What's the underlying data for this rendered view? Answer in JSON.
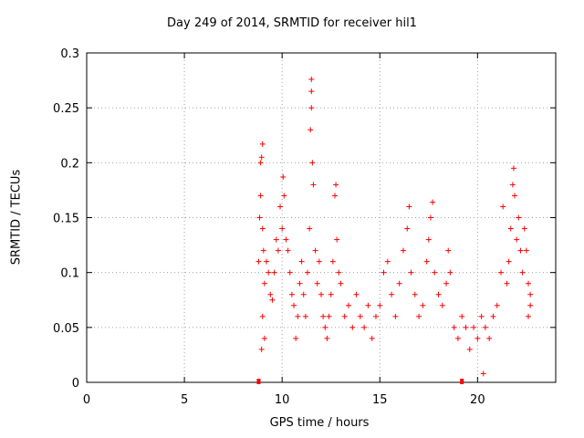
{
  "chart_data": {
    "type": "scatter",
    "title": "Day 249 of 2014, SRMTID for receiver hil1",
    "xlabel": "GPS time / hours",
    "ylabel": "SRMTID / TECUs",
    "xlim": [
      0,
      24
    ],
    "ylim": [
      0,
      0.3
    ],
    "xticks": [
      "0",
      "5",
      "10",
      "15",
      "20"
    ],
    "yticks": [
      "0",
      "0.05",
      "0.1",
      "0.15",
      "0.2",
      "0.25",
      "0.3"
    ],
    "grid": true,
    "marker": "+",
    "color": "#ff0000",
    "series": [
      {
        "points": [
          [
            8.8,
            0.11
          ],
          [
            8.85,
            0.15
          ],
          [
            8.9,
            0.2
          ],
          [
            8.95,
            0.205
          ],
          [
            9.0,
            0.217
          ],
          [
            8.9,
            0.17
          ],
          [
            9.0,
            0.14
          ],
          [
            9.05,
            0.12
          ],
          [
            9.1,
            0.09
          ],
          [
            9.0,
            0.06
          ],
          [
            8.95,
            0.03
          ],
          [
            9.1,
            0.04
          ],
          [
            9.2,
            0.11
          ],
          [
            9.3,
            0.1
          ],
          [
            9.4,
            0.08
          ],
          [
            9.5,
            0.075
          ],
          [
            9.6,
            0.1
          ],
          [
            9.7,
            0.13
          ],
          [
            9.8,
            0.12
          ],
          [
            9.9,
            0.16
          ],
          [
            10.0,
            0.14
          ],
          [
            10.05,
            0.187
          ],
          [
            10.1,
            0.17
          ],
          [
            10.2,
            0.13
          ],
          [
            10.3,
            0.12
          ],
          [
            10.4,
            0.1
          ],
          [
            10.5,
            0.08
          ],
          [
            10.6,
            0.07
          ],
          [
            10.7,
            0.04
          ],
          [
            10.8,
            0.06
          ],
          [
            10.9,
            0.09
          ],
          [
            11.0,
            0.11
          ],
          [
            11.1,
            0.08
          ],
          [
            11.2,
            0.06
          ],
          [
            11.3,
            0.1
          ],
          [
            11.4,
            0.14
          ],
          [
            11.45,
            0.23
          ],
          [
            11.5,
            0.276
          ],
          [
            11.5,
            0.265
          ],
          [
            11.55,
            0.2
          ],
          [
            11.5,
            0.25
          ],
          [
            11.6,
            0.18
          ],
          [
            11.7,
            0.12
          ],
          [
            11.8,
            0.09
          ],
          [
            11.9,
            0.11
          ],
          [
            12.0,
            0.08
          ],
          [
            12.1,
            0.06
          ],
          [
            12.2,
            0.05
          ],
          [
            12.3,
            0.04
          ],
          [
            12.4,
            0.06
          ],
          [
            12.5,
            0.08
          ],
          [
            12.6,
            0.11
          ],
          [
            12.7,
            0.17
          ],
          [
            12.75,
            0.18
          ],
          [
            12.8,
            0.13
          ],
          [
            12.9,
            0.1
          ],
          [
            13.0,
            0.09
          ],
          [
            13.2,
            0.06
          ],
          [
            13.4,
            0.07
          ],
          [
            13.6,
            0.05
          ],
          [
            13.8,
            0.08
          ],
          [
            14.0,
            0.06
          ],
          [
            14.2,
            0.05
          ],
          [
            14.4,
            0.07
          ],
          [
            14.6,
            0.04
          ],
          [
            14.8,
            0.06
          ],
          [
            15.0,
            0.07
          ],
          [
            15.2,
            0.1
          ],
          [
            15.4,
            0.11
          ],
          [
            15.6,
            0.08
          ],
          [
            15.8,
            0.06
          ],
          [
            16.0,
            0.09
          ],
          [
            16.2,
            0.12
          ],
          [
            16.4,
            0.14
          ],
          [
            16.5,
            0.16
          ],
          [
            16.6,
            0.1
          ],
          [
            16.8,
            0.08
          ],
          [
            17.0,
            0.06
          ],
          [
            17.2,
            0.07
          ],
          [
            17.4,
            0.11
          ],
          [
            17.5,
            0.13
          ],
          [
            17.6,
            0.15
          ],
          [
            17.7,
            0.164
          ],
          [
            17.8,
            0.1
          ],
          [
            18.0,
            0.08
          ],
          [
            18.2,
            0.07
          ],
          [
            18.4,
            0.09
          ],
          [
            18.5,
            0.12
          ],
          [
            18.6,
            0.1
          ],
          [
            18.8,
            0.05
          ],
          [
            19.0,
            0.04
          ],
          [
            19.2,
            0.06
          ],
          [
            19.4,
            0.05
          ],
          [
            19.6,
            0.03
          ],
          [
            19.8,
            0.05
          ],
          [
            20.0,
            0.04
          ],
          [
            20.2,
            0.06
          ],
          [
            20.3,
            0.008
          ],
          [
            20.4,
            0.05
          ],
          [
            20.6,
            0.04
          ],
          [
            20.8,
            0.06
          ],
          [
            21.0,
            0.07
          ],
          [
            21.2,
            0.1
          ],
          [
            21.3,
            0.16
          ],
          [
            21.5,
            0.09
          ],
          [
            21.6,
            0.11
          ],
          [
            21.7,
            0.14
          ],
          [
            21.8,
            0.18
          ],
          [
            21.85,
            0.195
          ],
          [
            21.9,
            0.17
          ],
          [
            22.0,
            0.13
          ],
          [
            22.1,
            0.15
          ],
          [
            22.2,
            0.12
          ],
          [
            22.3,
            0.1
          ],
          [
            22.4,
            0.14
          ],
          [
            22.5,
            0.12
          ],
          [
            22.6,
            0.09
          ],
          [
            22.7,
            0.07
          ],
          [
            22.6,
            0.06
          ],
          [
            22.7,
            0.08
          ]
        ]
      }
    ],
    "axis_markers_x": [
      8.8,
      19.2
    ]
  }
}
